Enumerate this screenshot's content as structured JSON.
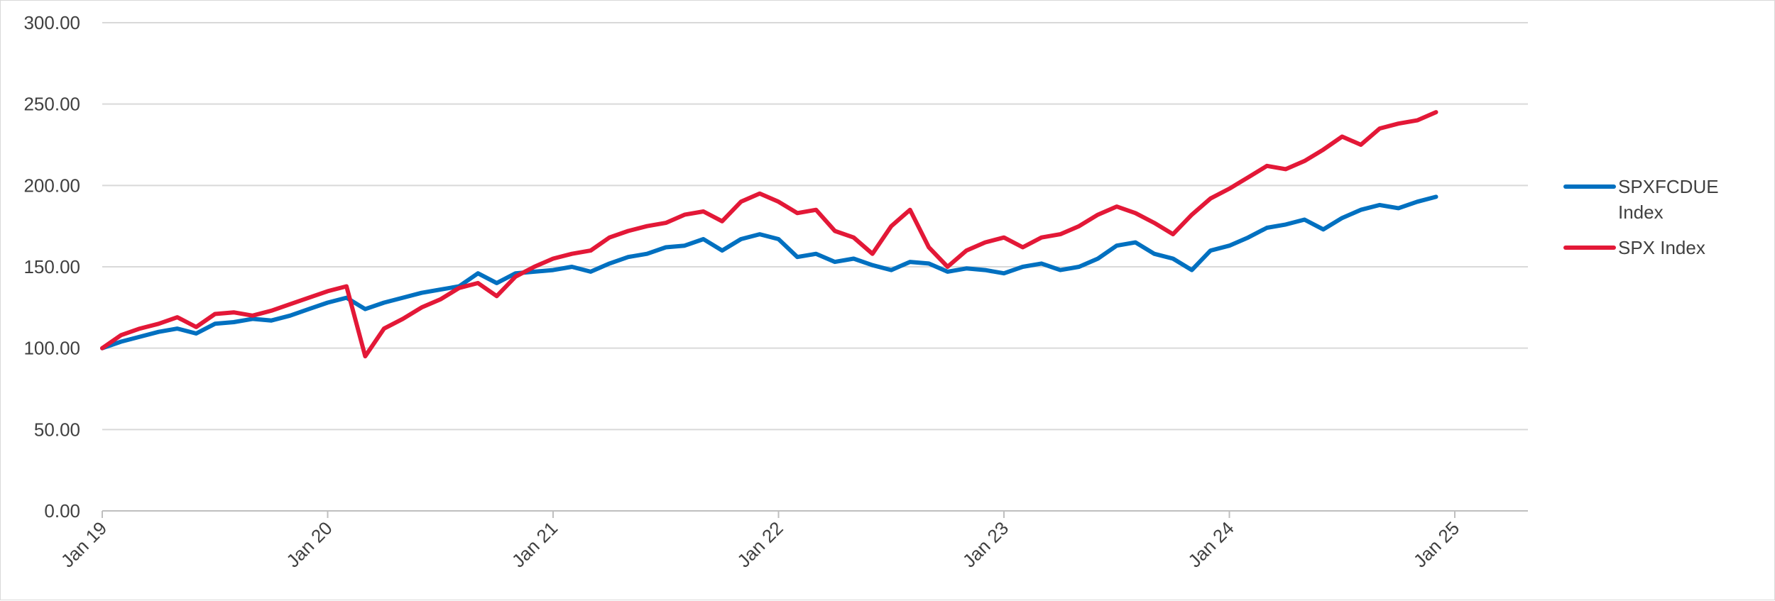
{
  "chart_data": {
    "type": "line",
    "title": "",
    "xlabel": "",
    "ylabel": "",
    "ylim": [
      0,
      300
    ],
    "yticks": [
      "0.00",
      "50.00",
      "100.00",
      "150.00",
      "200.00",
      "250.00",
      "300.00"
    ],
    "x_tick_labels": [
      "Jan 19",
      "Jan 20",
      "Jan 21",
      "Jan 22",
      "Jan 23",
      "Jan 24",
      "Jan 25"
    ],
    "xlim": [
      "2019-01",
      "2025-01"
    ],
    "grid": "horizontal",
    "legend_position": "right",
    "x": [
      "2019-01",
      "2019-02",
      "2019-03",
      "2019-04",
      "2019-05",
      "2019-06",
      "2019-07",
      "2019-08",
      "2019-09",
      "2019-10",
      "2019-11",
      "2019-12",
      "2020-01",
      "2020-02",
      "2020-03",
      "2020-04",
      "2020-05",
      "2020-06",
      "2020-07",
      "2020-08",
      "2020-09",
      "2020-10",
      "2020-11",
      "2020-12",
      "2021-01",
      "2021-02",
      "2021-03",
      "2021-04",
      "2021-05",
      "2021-06",
      "2021-07",
      "2021-08",
      "2021-09",
      "2021-10",
      "2021-11",
      "2021-12",
      "2022-01",
      "2022-02",
      "2022-03",
      "2022-04",
      "2022-05",
      "2022-06",
      "2022-07",
      "2022-08",
      "2022-09",
      "2022-10",
      "2022-11",
      "2022-12",
      "2023-01",
      "2023-02",
      "2023-03",
      "2023-04",
      "2023-05",
      "2023-06",
      "2023-07",
      "2023-08",
      "2023-09",
      "2023-10",
      "2023-11",
      "2023-12",
      "2024-01",
      "2024-02",
      "2024-03",
      "2024-04",
      "2024-05",
      "2024-06",
      "2024-07",
      "2024-08",
      "2024-09",
      "2024-10",
      "2024-11",
      "2024-12"
    ],
    "series": [
      {
        "name": "SPXFCDUE Index",
        "color": "#0070c0",
        "values": [
          100,
          104,
          107,
          110,
          112,
          109,
          115,
          116,
          118,
          117,
          120,
          124,
          128,
          131,
          124,
          128,
          131,
          134,
          136,
          138,
          146,
          140,
          146,
          147,
          148,
          150,
          147,
          152,
          156,
          158,
          162,
          163,
          167,
          160,
          167,
          170,
          167,
          156,
          158,
          153,
          155,
          151,
          148,
          153,
          152,
          147,
          149,
          148,
          146,
          150,
          152,
          148,
          150,
          155,
          163,
          165,
          158,
          155,
          148,
          160,
          163,
          168,
          174,
          176,
          179,
          173,
          180,
          185,
          188,
          186,
          190,
          193
        ]
      },
      {
        "name": "SPX Index",
        "color": "#e31837",
        "values": [
          100,
          108,
          112,
          115,
          119,
          113,
          121,
          122,
          120,
          123,
          127,
          131,
          135,
          138,
          95,
          112,
          118,
          125,
          130,
          137,
          140,
          132,
          144,
          150,
          155,
          158,
          160,
          168,
          172,
          175,
          177,
          182,
          184,
          178,
          190,
          195,
          190,
          183,
          185,
          172,
          168,
          158,
          175,
          185,
          162,
          150,
          160,
          165,
          168,
          162,
          168,
          170,
          175,
          182,
          187,
          183,
          177,
          170,
          182,
          192,
          198,
          205,
          212,
          210,
          215,
          222,
          230,
          225,
          235,
          238,
          240,
          245
        ]
      }
    ]
  }
}
